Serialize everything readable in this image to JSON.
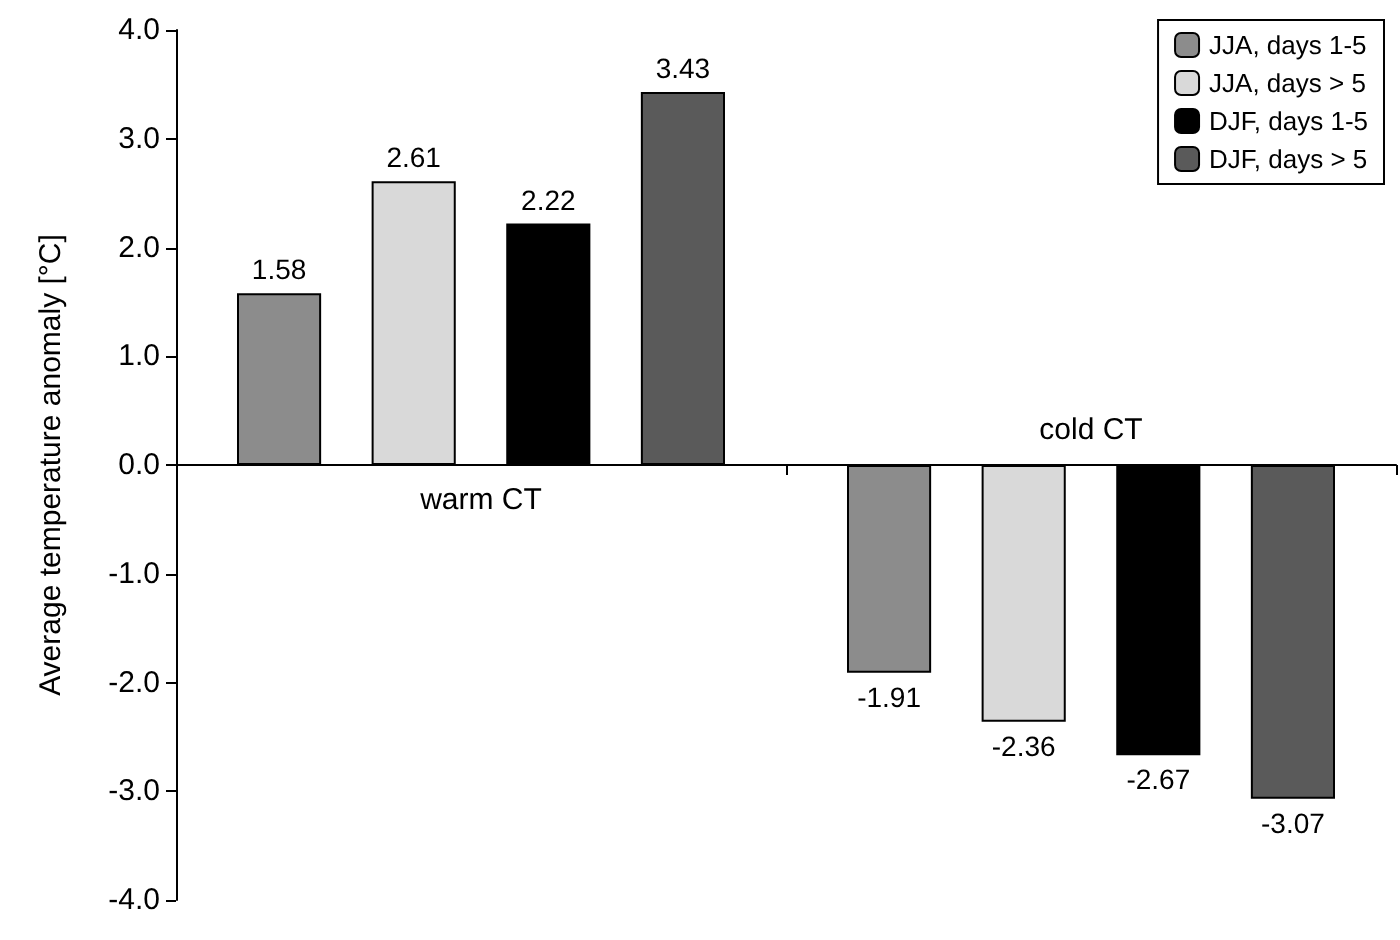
{
  "chart_data": {
    "type": "bar",
    "ylabel": "Average temperature anomaly [°C]",
    "categories": [
      "warm CT",
      "cold CT"
    ],
    "series": [
      {
        "name": "JJA, days 1-5",
        "color": "#8c8c8c",
        "values": [
          1.58,
          -1.91
        ]
      },
      {
        "name": "JJA, days > 5",
        "color": "#d9d9d9",
        "values": [
          2.61,
          -2.36
        ]
      },
      {
        "name": "DJF, days 1-5",
        "color": "#000000",
        "values": [
          2.22,
          -2.67
        ]
      },
      {
        "name": "DJF, days > 5",
        "color": "#5a5a5a",
        "values": [
          3.43,
          -3.07
        ]
      }
    ],
    "ylim": [
      -4,
      4
    ],
    "yticks": [
      {
        "value": -4,
        "label": "-4.0"
      },
      {
        "value": -3,
        "label": "-3.0"
      },
      {
        "value": -2,
        "label": "-2.0"
      },
      {
        "value": -1,
        "label": "-1.0"
      },
      {
        "value": 0,
        "label": "0.0"
      },
      {
        "value": 1,
        "label": "1.0"
      },
      {
        "value": 2,
        "label": "2.0"
      },
      {
        "value": 3,
        "label": "3.0"
      },
      {
        "value": 4,
        "label": "4.0"
      }
    ],
    "data_labels": true,
    "legend": "top right"
  }
}
